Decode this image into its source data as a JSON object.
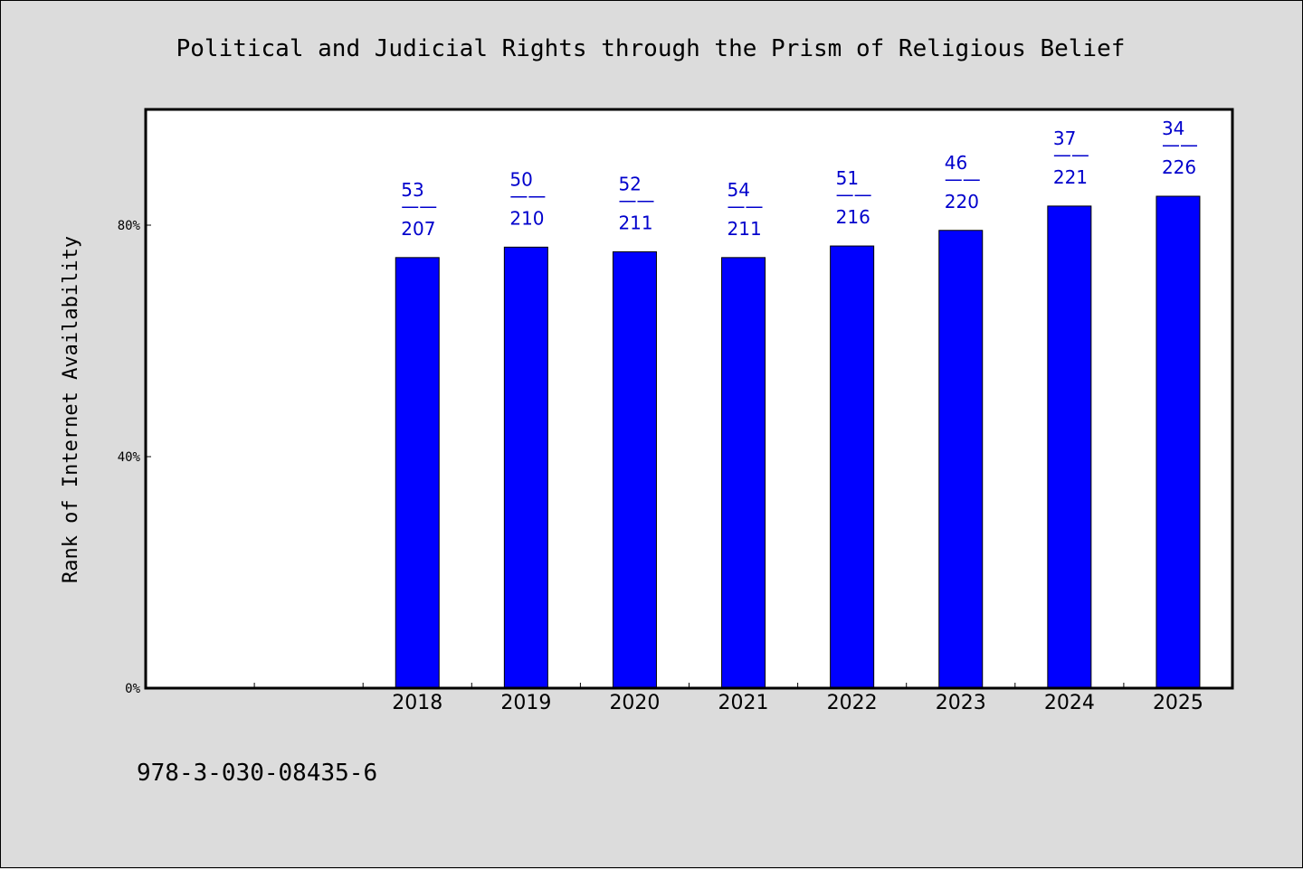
{
  "chart_data": {
    "type": "bar",
    "title": "Political and Judicial Rights through the Prism of Religious Belief",
    "ylabel": "Rank of Internet Availability",
    "xlabel": "",
    "categories": [
      "",
      "",
      "2018",
      "2019",
      "2020",
      "2021",
      "2022",
      "2023",
      "2024",
      "2025"
    ],
    "series": [
      {
        "color": "#0000ff",
        "values": [
          null,
          null,
          74.4,
          76.2,
          75.4,
          74.4,
          76.4,
          79.1,
          83.3,
          85.0
        ],
        "numerators": [
          null,
          null,
          53,
          50,
          52,
          54,
          51,
          46,
          37,
          34
        ],
        "denominators": [
          null,
          null,
          207,
          210,
          211,
          211,
          216,
          220,
          221,
          226
        ]
      }
    ],
    "ylim": [
      0,
      100
    ],
    "yticks": [
      0,
      40,
      80
    ],
    "ytick_labels": [
      "0%",
      "40%",
      "80%"
    ],
    "grid": false,
    "legend": "none",
    "label_color": "#0000cc",
    "footer": "978-3-030-08435-6"
  }
}
